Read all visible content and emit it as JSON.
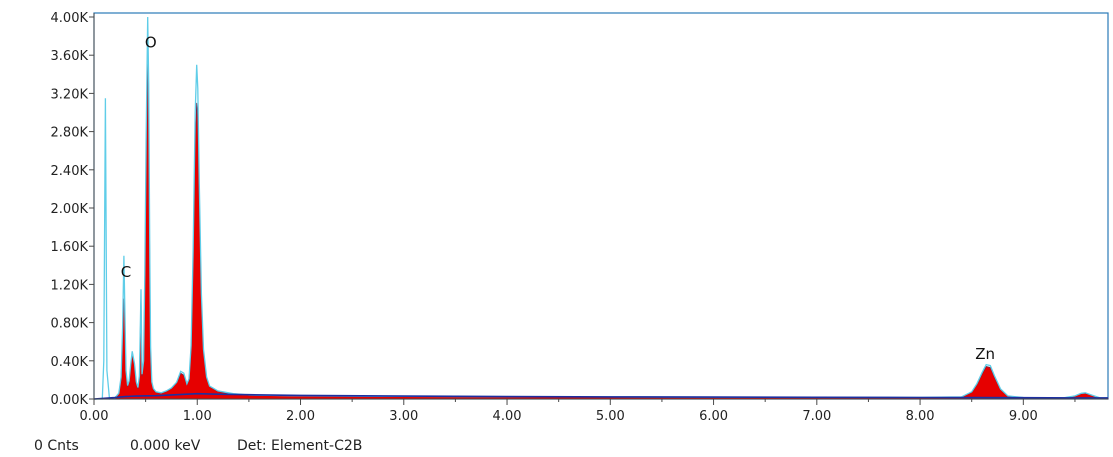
{
  "chart_data": {
    "type": "area",
    "xlim": [
      0,
      9.82
    ],
    "ylim": [
      0,
      4000
    ],
    "x_ticks": [
      "0.00",
      "1.00",
      "2.00",
      "3.00",
      "4.00",
      "5.00",
      "6.00",
      "7.00",
      "8.00",
      "9.00"
    ],
    "y_ticks": [
      "0.00K",
      "0.40K",
      "0.80K",
      "1.20K",
      "1.60K",
      "2.00K",
      "2.40K",
      "2.80K",
      "3.20K",
      "3.60K",
      "4.00K"
    ],
    "grid": false,
    "legend": "none",
    "series": [
      {
        "style": "filled",
        "x": [
          0.0,
          0.15,
          0.2,
          0.24,
          0.262,
          0.277,
          0.29,
          0.3,
          0.31,
          0.325,
          0.34,
          0.355,
          0.37,
          0.392,
          0.41,
          0.425,
          0.44,
          0.455,
          0.465,
          0.48,
          0.492,
          0.505,
          0.52,
          0.53,
          0.54,
          0.548,
          0.56,
          0.575,
          0.6,
          0.65,
          0.7,
          0.75,
          0.8,
          0.84,
          0.87,
          0.9,
          0.92,
          0.94,
          0.96,
          0.98,
          0.995,
          1.005,
          1.02,
          1.04,
          1.06,
          1.09,
          1.12,
          1.2,
          1.35,
          1.5,
          2.0,
          3.0,
          4.0,
          5.0,
          6.0,
          7.0,
          8.0,
          8.4,
          8.5,
          8.55,
          8.6,
          8.64,
          8.68,
          8.72,
          8.78,
          8.85,
          9.0,
          9.4,
          9.5,
          9.56,
          9.6,
          9.66,
          9.74,
          9.82
        ],
        "y": [
          0,
          0,
          10,
          60,
          220,
          700,
          1050,
          780,
          280,
          130,
          180,
          340,
          470,
          350,
          170,
          110,
          220,
          1100,
          240,
          380,
          1200,
          2400,
          3560,
          2900,
          1400,
          500,
          170,
          100,
          70,
          60,
          80,
          110,
          170,
          270,
          250,
          150,
          200,
          520,
          1400,
          2700,
          3100,
          2950,
          2100,
          1050,
          500,
          220,
          130,
          80,
          50,
          40,
          30,
          25,
          22,
          20,
          18,
          16,
          15,
          20,
          70,
          150,
          260,
          340,
          330,
          230,
          100,
          30,
          15,
          14,
          30,
          55,
          60,
          40,
          12,
          10
        ]
      },
      {
        "style": "outline",
        "x": [
          0.0,
          0.08,
          0.095,
          0.11,
          0.125,
          0.15,
          0.2,
          0.24,
          0.262,
          0.277,
          0.29,
          0.3,
          0.31,
          0.325,
          0.34,
          0.355,
          0.37,
          0.392,
          0.41,
          0.425,
          0.44,
          0.455,
          0.465,
          0.48,
          0.492,
          0.505,
          0.52,
          0.53,
          0.54,
          0.548,
          0.56,
          0.575,
          0.6,
          0.65,
          0.7,
          0.75,
          0.8,
          0.84,
          0.87,
          0.9,
          0.92,
          0.94,
          0.96,
          0.98,
          0.995,
          1.005,
          1.02,
          1.04,
          1.06,
          1.09,
          1.12,
          1.2,
          1.35,
          1.5,
          2.0,
          3.0,
          4.0,
          5.0,
          6.0,
          7.0,
          8.0,
          8.4,
          8.5,
          8.55,
          8.6,
          8.64,
          8.68,
          8.72,
          8.78,
          8.85,
          9.0,
          9.4,
          9.5,
          9.56,
          9.6,
          9.66,
          9.74,
          9.82
        ],
        "y": [
          0,
          0,
          400,
          3150,
          300,
          0,
          10,
          60,
          230,
          750,
          1500,
          850,
          300,
          140,
          190,
          360,
          500,
          370,
          180,
          120,
          240,
          1150,
          260,
          400,
          1300,
          2700,
          4000,
          3300,
          1500,
          550,
          180,
          110,
          75,
          65,
          85,
          115,
          175,
          290,
          270,
          160,
          210,
          560,
          1550,
          3000,
          3500,
          3250,
          2250,
          1100,
          520,
          230,
          135,
          85,
          55,
          42,
          32,
          27,
          24,
          22,
          20,
          18,
          17,
          22,
          75,
          160,
          275,
          360,
          350,
          245,
          105,
          32,
          16,
          15,
          32,
          60,
          65,
          42,
          13,
          11
        ]
      },
      {
        "style": "line",
        "x": [
          0.0,
          0.2,
          0.3,
          0.4,
          0.6,
          0.8,
          1.0,
          1.2,
          1.5,
          2.0,
          3.0,
          4.0,
          5.0,
          6.0,
          7.0,
          8.0,
          8.5,
          9.0,
          9.5,
          9.82
        ],
        "y": [
          0,
          15,
          25,
          30,
          35,
          45,
          55,
          50,
          45,
          38,
          30,
          25,
          22,
          20,
          18,
          16,
          15,
          14,
          12,
          12
        ]
      }
    ],
    "annotations": [
      {
        "text": "O",
        "x": 0.55,
        "y": 3680
      },
      {
        "text": "C",
        "x": 0.31,
        "y": 1280
      },
      {
        "text": "Zn",
        "x": 8.63,
        "y": 420
      }
    ]
  },
  "status_bar": {
    "counts": "0 Cnts",
    "energy": "0.000 keV",
    "detector": "Det: Element-C2B"
  },
  "colors": {
    "fill": "#e60000",
    "fill_edge": "#6a2d4f",
    "outline": "#5fcde8",
    "background_line": "#1d2fa0",
    "frame": "#2a7ab8",
    "axis": "#4a4a4a"
  }
}
